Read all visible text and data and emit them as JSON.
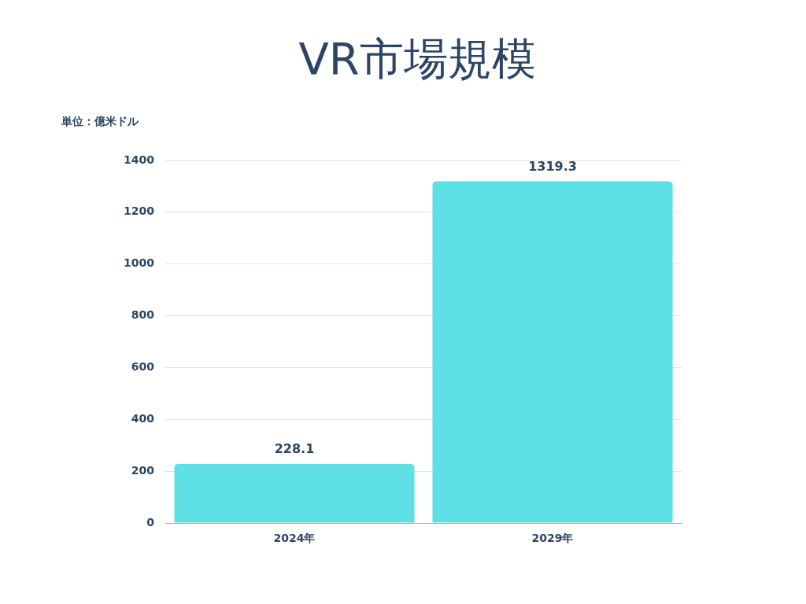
{
  "chart_data": {
    "type": "bar",
    "title": "VR市場規模",
    "ylabel": "単位：億米ドル",
    "categories": [
      "2024年",
      "2029年"
    ],
    "values": [
      228.1,
      1319.3
    ],
    "color": "#5ee0e4",
    "ylim": [
      0,
      1400
    ],
    "yticks": [
      0,
      200,
      400,
      600,
      800,
      1000,
      1200,
      1400
    ],
    "grid": "y",
    "legend": false,
    "data_labels": true
  }
}
